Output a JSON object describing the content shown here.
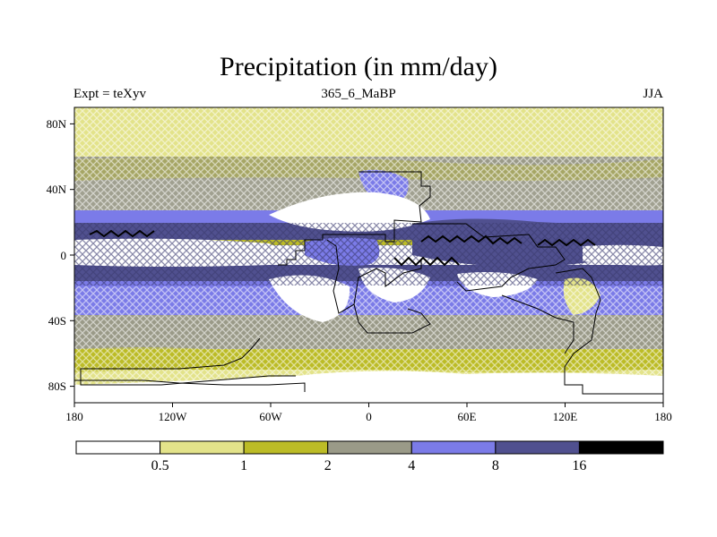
{
  "title": "Precipitation (in mm/day)",
  "subtitle_left": "Expt = teXyv",
  "subtitle_center": "365_6_MaBP",
  "subtitle_right": "JJA",
  "lon_ticks": [
    "180",
    "120W",
    "60W",
    "0",
    "60E",
    "120E",
    "180"
  ],
  "lat_ticks": [
    "80N",
    "40N",
    "0",
    "40S",
    "80S"
  ],
  "colorbar": {
    "colors": [
      "#ffffff",
      "#e3e38a",
      "#bcbc26",
      "#9a9a88",
      "#7b7be8",
      "#50508f",
      "#000000"
    ],
    "labels": [
      "0.5",
      "1",
      "2",
      "4",
      "8",
      "16"
    ]
  },
  "chart_data": {
    "type": "heatmap",
    "title": "Precipitation (in mm/day)",
    "xlabel": "",
    "ylabel": "",
    "x_range": [
      -180,
      180
    ],
    "y_range": [
      -90,
      90
    ],
    "levels": [
      0.5,
      1,
      2,
      4,
      8,
      16
    ],
    "lat_band_pattern": [
      {
        "lat": [
          60,
          90
        ],
        "value": 0.8
      },
      {
        "lat": [
          45,
          60
        ],
        "value": 3
      },
      {
        "lat": [
          28,
          45
        ],
        "value": 3.5
      },
      {
        "lat": [
          20,
          28
        ],
        "value": 5
      },
      {
        "lat": [
          10,
          20
        ],
        "value": 9
      },
      {
        "lat": [
          5,
          10
        ],
        "value": 1
      },
      {
        "lat": [
          -5,
          5
        ],
        "value": 0.3
      },
      {
        "lat": [
          -15,
          -5
        ],
        "value": 8
      },
      {
        "lat": [
          -30,
          -15
        ],
        "value": 5
      },
      {
        "lat": [
          -50,
          -30
        ],
        "value": 4.5
      },
      {
        "lat": [
          -65,
          -50
        ],
        "value": 3
      },
      {
        "lat": [
          -75,
          -65
        ],
        "value": 1.2
      },
      {
        "lat": [
          -90,
          -75
        ],
        "value": 0.4
      }
    ]
  }
}
